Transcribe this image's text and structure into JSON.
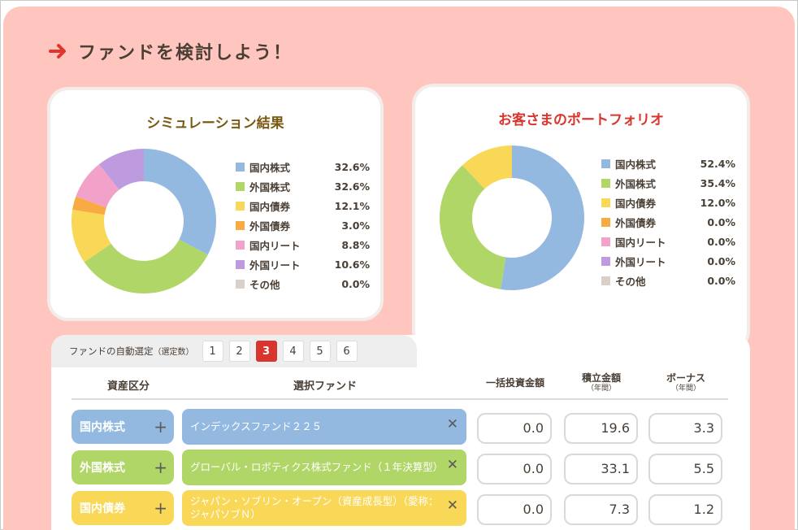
{
  "page": {
    "title": "ファンドを検討しよう！"
  },
  "colors": {
    "domestic_stock": "#93b9e1",
    "foreign_stock": "#b1d668",
    "domestic_bond": "#f9d757",
    "foreign_bond": "#f8aa43",
    "domestic_reit": "#f2a2c9",
    "foreign_reit": "#be9ade",
    "other": "#d9d0ca"
  },
  "simulation": {
    "title": "シミュレーション結果",
    "chart_data": {
      "type": "pie",
      "categories": [
        "国内株式",
        "外国株式",
        "国内債券",
        "外国債券",
        "国内リート",
        "外国リート",
        "その他"
      ],
      "values": [
        32.6,
        32.6,
        12.1,
        3.0,
        8.8,
        10.6,
        0.0
      ],
      "labels": [
        "32.6%",
        "32.6%",
        "12.1%",
        "3.0%",
        "8.8%",
        "10.6%",
        "0.0%"
      ]
    }
  },
  "portfolio": {
    "title": "お客さまのポートフォリオ",
    "chart_data": {
      "type": "pie",
      "categories": [
        "国内株式",
        "外国株式",
        "国内債券",
        "外国債券",
        "国内リート",
        "外国リート",
        "その他"
      ],
      "values": [
        52.4,
        35.4,
        12.0,
        0.0,
        0.0,
        0.0,
        0.0
      ],
      "labels": [
        "52.4%",
        "35.4%",
        "12.0%",
        "0.0%",
        "0.0%",
        "0.0%",
        "0.0%"
      ]
    }
  },
  "auto_select": {
    "label": "ファンドの自動選定",
    "sub_label": "（選定数）",
    "numbers": [
      "1",
      "2",
      "3",
      "4",
      "5",
      "6"
    ],
    "selected": "3"
  },
  "table": {
    "headers": {
      "asset": "資産区分",
      "fund": "選択ファンド",
      "lump": "一括投資金額",
      "monthly": "積立金額",
      "monthly_sub": "（年間）",
      "bonus": "ボーナス",
      "bonus_sub": "（年間）"
    },
    "rows": [
      {
        "asset": "国内株式",
        "fund": "インデックスファンド２２５",
        "lump": "0.0",
        "monthly": "19.6",
        "bonus": "3.3"
      },
      {
        "asset": "外国株式",
        "fund": "グローバル・ロボティクス株式ファンド（１年決算型）",
        "lump": "0.0",
        "monthly": "33.1",
        "bonus": "5.5"
      },
      {
        "asset": "国内債券",
        "fund": "ジャパン・ソブリン・オープン（資産成長型）（愛称：ジャパソブＮ）",
        "lump": "0.0",
        "monthly": "7.3",
        "bonus": "1.2"
      }
    ],
    "plus_symbol": "+",
    "remove_symbol": "✕"
  }
}
